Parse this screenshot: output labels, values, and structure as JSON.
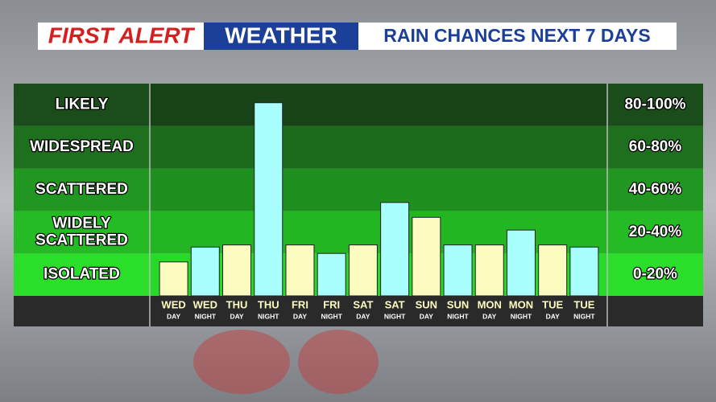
{
  "header": {
    "brand": "FIRST ALERT",
    "section": "WEATHER"
  },
  "chart_data": {
    "type": "bar",
    "title": "RAIN CHANCES NEXT 7 DAYS",
    "categories": [
      [
        "WED",
        "DAY"
      ],
      [
        "WED",
        "NIGHT"
      ],
      [
        "THU",
        "DAY"
      ],
      [
        "THU",
        "NIGHT"
      ],
      [
        "FRI",
        "DAY"
      ],
      [
        "FRI",
        "NIGHT"
      ],
      [
        "SAT",
        "DAY"
      ],
      [
        "SAT",
        "NIGHT"
      ],
      [
        "SUN",
        "DAY"
      ],
      [
        "SUN",
        "NIGHT"
      ],
      [
        "MON",
        "DAY"
      ],
      [
        "MON",
        "NIGHT"
      ],
      [
        "TUE",
        "DAY"
      ],
      [
        "TUE",
        "NIGHT"
      ]
    ],
    "values": [
      16,
      23,
      24,
      91,
      24,
      20,
      24,
      44,
      37,
      24,
      24,
      31,
      24,
      23
    ],
    "colors": [
      "#fdfcc0",
      "#a9fefe",
      "#fdfcc0",
      "#a9fefe",
      "#fdfcc0",
      "#a9fefe",
      "#fdfcc0",
      "#a9fefe",
      "#fdfcc0",
      "#a9fefe",
      "#fdfcc0",
      "#a9fefe",
      "#fdfcc0",
      "#a9fefe"
    ],
    "ylim": [
      0,
      100
    ],
    "bands": [
      {
        "label": [
          "LIKELY"
        ],
        "range": "80-100%",
        "from": 80,
        "to": 100,
        "color": "#174317",
        "side_color": "#1a4d1a"
      },
      {
        "label": [
          "WIDESPREAD"
        ],
        "range": "60-80%",
        "from": 60,
        "to": 80,
        "color": "#1d6b1d",
        "side_color": "#1e701e"
      },
      {
        "label": [
          "SCATTERED"
        ],
        "range": "40-60%",
        "from": 40,
        "to": 60,
        "color": "#1f901f",
        "side_color": "#219621"
      },
      {
        "label": [
          "WIDELY",
          "SCATTERED"
        ],
        "range": "20-40%",
        "from": 20,
        "to": 40,
        "color": "#22b622",
        "side_color": "#24bb24"
      },
      {
        "label": [
          "ISOLATED"
        ],
        "range": "0-20%",
        "from": 0,
        "to": 20,
        "color": "#28da28",
        "side_color": "#2ade2a"
      }
    ]
  }
}
